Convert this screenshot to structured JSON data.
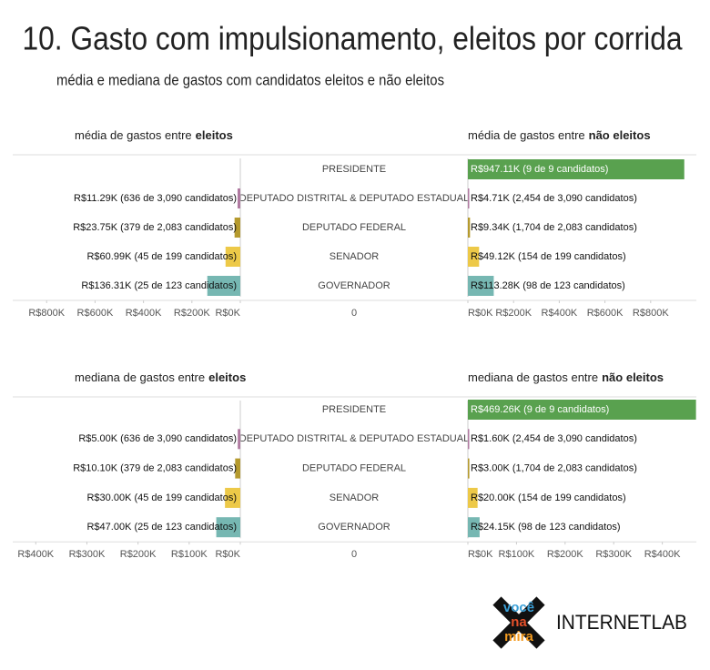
{
  "title": "10. Gasto com impulsionamento, eleitos por corrida",
  "subtitle": "média e mediana de gastos com candidatos eleitos e não eleitos",
  "chart_data": [
    {
      "type": "bar",
      "categories": [
        "PRESIDENTE",
        "DEPUTADO DISTRITAL & DEPUTADO ESTADUAL",
        "DEPUTADO FEDERAL",
        "SENADOR",
        "GOVERNADOR"
      ],
      "colors": [
        "#59a14f",
        "#b07aa1",
        "#b59a2e",
        "#edc948",
        "#76b7b2"
      ],
      "center_label": "0",
      "series": [
        {
          "title": [
            "média de gastos entre",
            "eleitos"
          ],
          "values": [
            null,
            11290,
            23750,
            60990,
            136310
          ],
          "value_labels": [
            null,
            "R$11.29K (636 de 3,090 candidatos)",
            "R$23.75K (379 de 2,083 candidatos)",
            "R$60.99K (45 de 199 candidatos)",
            "R$136.31K (25 de 123 candidatos)"
          ],
          "xlim": [
            940000,
            0
          ],
          "xticks": [
            {
              "value": 800000,
              "label": "R$800K"
            },
            {
              "value": 600000,
              "label": "R$600K"
            },
            {
              "value": 400000,
              "label": "R$400K"
            },
            {
              "value": 200000,
              "label": "R$200K"
            },
            {
              "value": 0,
              "label": "R$0K"
            }
          ]
        },
        {
          "title": [
            "média de gastos entre",
            "não eleitos"
          ],
          "values": [
            947110,
            4710,
            9340,
            49120,
            113280
          ],
          "value_labels": [
            "R$947.11K (9 de 9 candidatos)",
            "R$4.71K (2,454 de 3,090 candidatos)",
            "R$9.34K (1,704 de 2,083 candidatos)",
            "R$49.12K (154 de 199 candidatos)",
            "R$113.28K (98 de 123 candidatos)"
          ],
          "xlim": [
            0,
            1000000
          ],
          "xticks": [
            {
              "value": 0,
              "label": "R$0K"
            },
            {
              "value": 200000,
              "label": "R$200K"
            },
            {
              "value": 400000,
              "label": "R$400K"
            },
            {
              "value": 600000,
              "label": "R$600K"
            },
            {
              "value": 800000,
              "label": "R$800K"
            }
          ]
        }
      ]
    },
    {
      "type": "bar",
      "categories": [
        "PRESIDENTE",
        "DEPUTADO DISTRITAL & DEPUTADO ESTADUAL",
        "DEPUTADO FEDERAL",
        "SENADOR",
        "GOVERNADOR"
      ],
      "colors": [
        "#59a14f",
        "#b07aa1",
        "#b59a2e",
        "#edc948",
        "#76b7b2"
      ],
      "center_label": "0",
      "series": [
        {
          "title": [
            "mediana de gastos entre",
            "eleitos"
          ],
          "values": [
            null,
            5000,
            10100,
            30000,
            47000
          ],
          "value_labels": [
            null,
            "R$5.00K (636 de 3,090 candidatos)",
            "R$10.10K (379 de 2,083 candidatos)",
            "R$30.00K (45 de 199 candidatos)",
            "R$47.00K (25 de 123 candidatos)"
          ],
          "xlim": [
            445000,
            0
          ],
          "xticks": [
            {
              "value": 400000,
              "label": "R$400K"
            },
            {
              "value": 300000,
              "label": "R$300K"
            },
            {
              "value": 200000,
              "label": "R$200K"
            },
            {
              "value": 100000,
              "label": "R$100K"
            },
            {
              "value": 0,
              "label": "R$0K"
            }
          ]
        },
        {
          "title": [
            "mediana de gastos entre",
            "não eleitos"
          ],
          "values": [
            469260,
            1600,
            3000,
            20000,
            24150
          ],
          "value_labels": [
            "R$469.26K (9 de 9 candidatos)",
            "R$1.60K (2,454 de 3,090 candidatos)",
            "R$3.00K (1,704 de 2,083 candidatos)",
            "R$20.00K (154 de 199 candidatos)",
            "R$24.15K (98 de 123 candidatos)"
          ],
          "xlim": [
            0,
            470000
          ],
          "xticks": [
            {
              "value": 0,
              "label": "R$0K"
            },
            {
              "value": 100000,
              "label": "R$100K"
            },
            {
              "value": 200000,
              "label": "R$200K"
            },
            {
              "value": 300000,
              "label": "R$300K"
            },
            {
              "value": 400000,
              "label": "R$400K"
            }
          ]
        }
      ]
    }
  ],
  "logo": {
    "mark": [
      "você",
      "na",
      "mira"
    ],
    "name": "INTERNETLAB"
  }
}
